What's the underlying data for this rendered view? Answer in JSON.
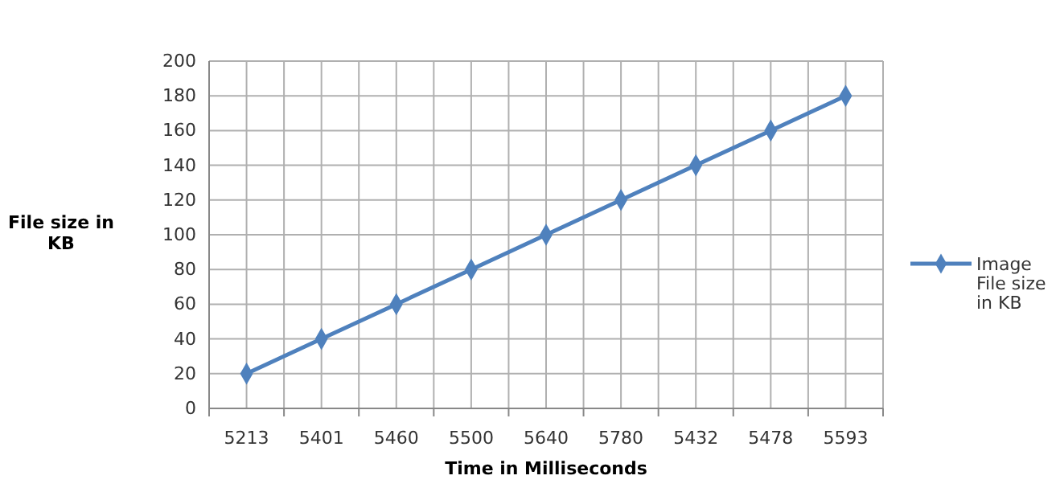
{
  "chart_data": {
    "type": "line",
    "xlabel": "Time in Milliseconds",
    "ylabel": "File size in KB",
    "categories": [
      "5213",
      "5401",
      "5460",
      "5500",
      "5640",
      "5780",
      "5432",
      "5478",
      "5593"
    ],
    "series": [
      {
        "name": "Image File size in KB",
        "color": "#4f81bd",
        "values": [
          20,
          40,
          60,
          80,
          100,
          120,
          140,
          160,
          180
        ]
      }
    ],
    "ylim": [
      0,
      200
    ],
    "yticks": [
      0,
      20,
      40,
      60,
      80,
      100,
      120,
      140,
      160,
      180,
      200
    ],
    "grid": true,
    "legend": "right",
    "marker": "diamond",
    "line_style": "solid"
  }
}
